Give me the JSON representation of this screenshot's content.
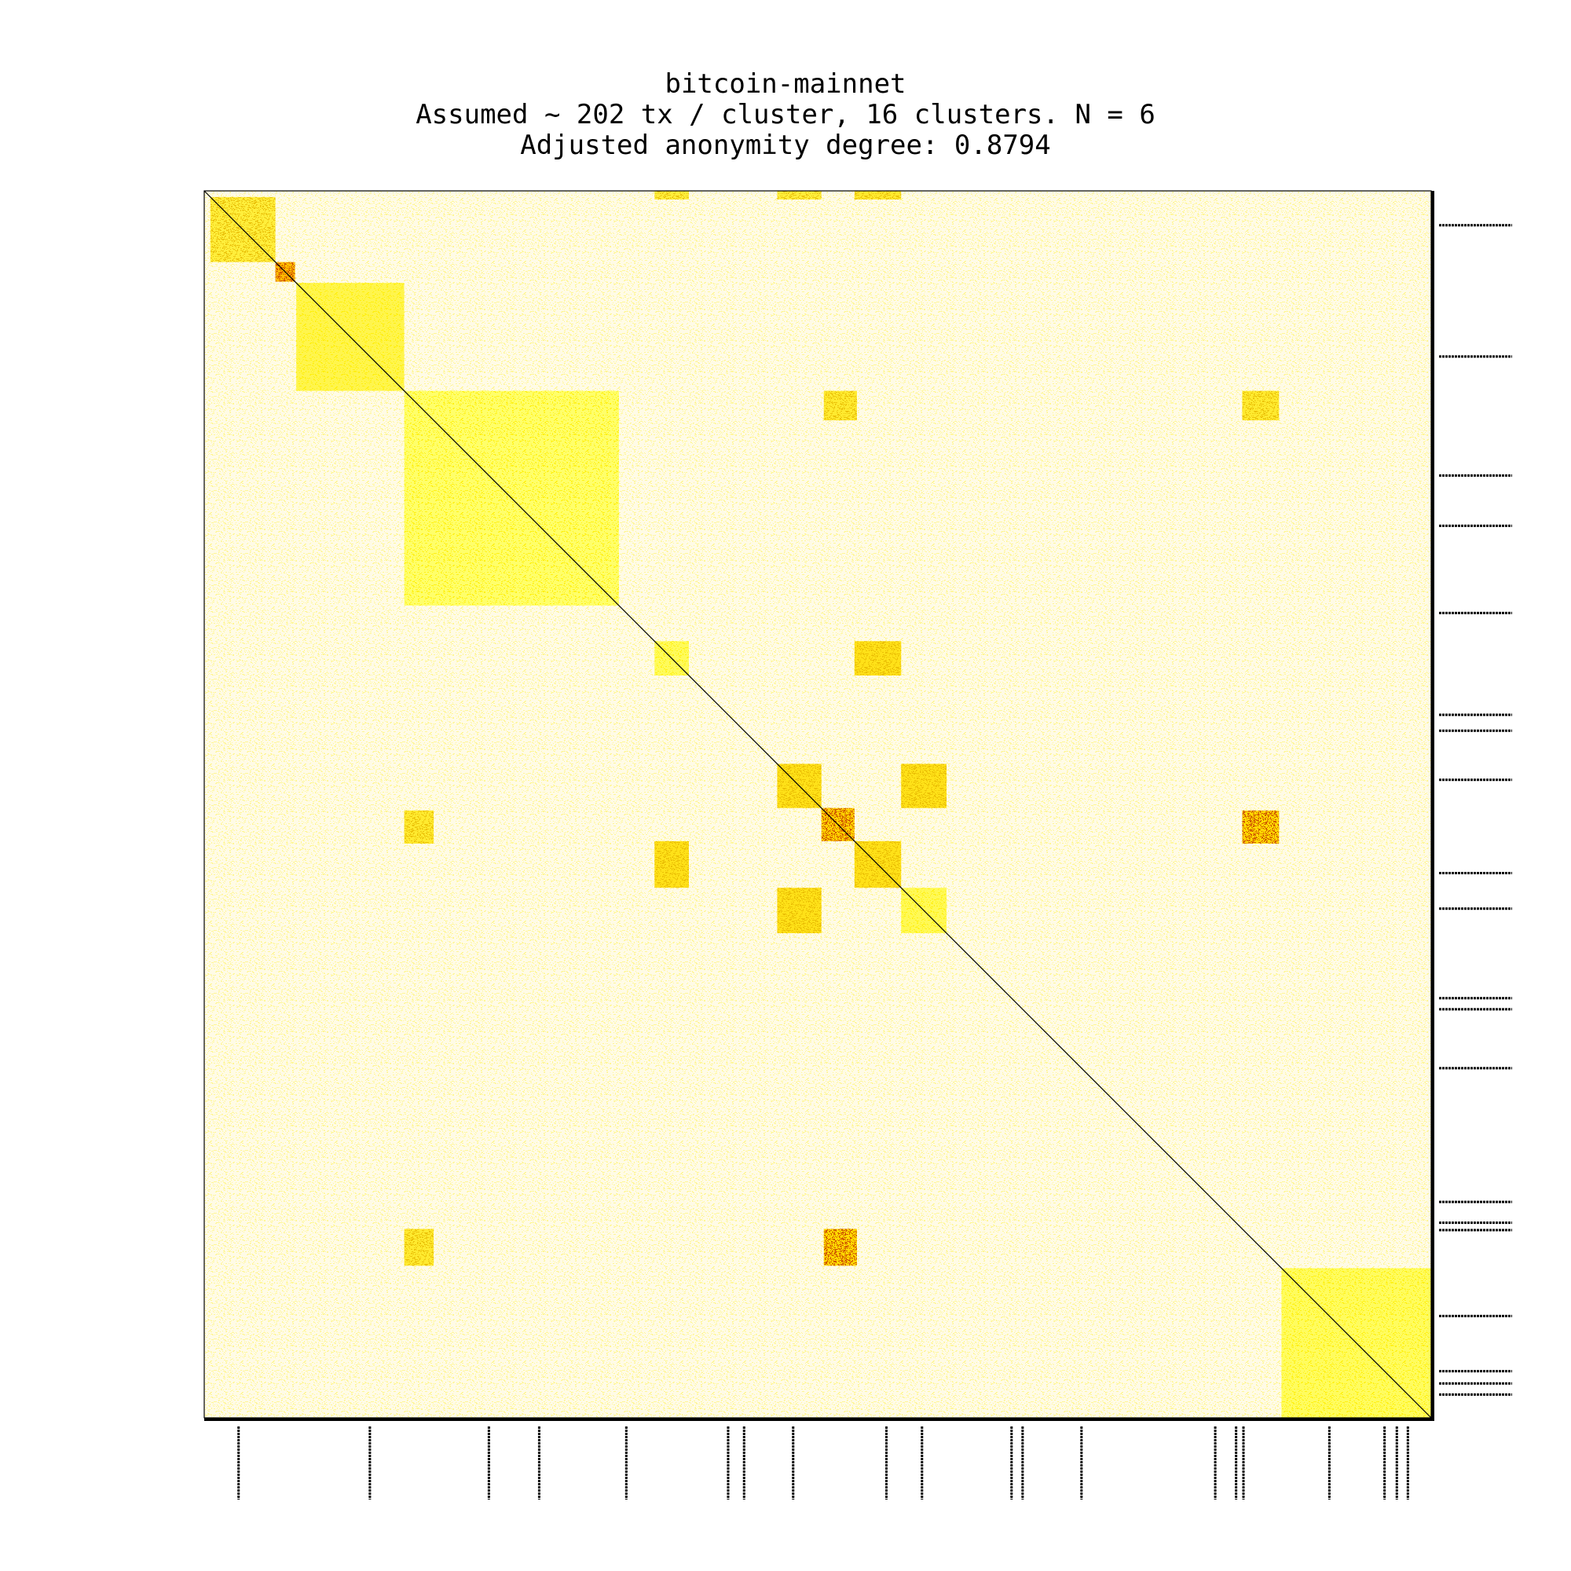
{
  "chart_data": {
    "type": "heatmap",
    "title_lines": [
      "bitcoin-mainnet",
      "Assumed ~ 202 tx / cluster, 16 clusters. N = 6",
      "Adjusted anonymity degree: 0.8794"
    ],
    "matrix_size": 1000,
    "colormap": [
      "#ffffff",
      "#ffff66",
      "#ffd700",
      "#ff9900",
      "#dd2200",
      "#000000"
    ],
    "diagonal_line": true,
    "dense_blocks": [
      {
        "start": 5,
        "end": 58,
        "intensity": 0.3
      },
      {
        "start": 58,
        "end": 74,
        "intensity": 0.75
      },
      {
        "start": 75,
        "end": 163,
        "intensity": 0.22
      },
      {
        "start": 163,
        "end": 338,
        "intensity": 0.1
      },
      {
        "start": 367,
        "end": 395,
        "intensity": 0.16
      },
      {
        "start": 467,
        "end": 503,
        "intensity": 0.45
      },
      {
        "start": 503,
        "end": 530,
        "intensity": 0.6
      },
      {
        "start": 530,
        "end": 568,
        "intensity": 0.45
      },
      {
        "start": 568,
        "end": 605,
        "intensity": 0.18
      },
      {
        "start": 878,
        "end": 1000,
        "intensity": 0.14
      }
    ],
    "offdiagonal_blocks": [
      {
        "rows": [
          163,
          187
        ],
        "cols": [
          505,
          532
        ],
        "intensity": 0.35
      },
      {
        "rows": [
          163,
          187
        ],
        "cols": [
          846,
          876
        ],
        "intensity": 0.35
      },
      {
        "rows": [
          505,
          532
        ],
        "cols": [
          163,
          187
        ],
        "intensity": 0.35
      },
      {
        "rows": [
          505,
          532
        ],
        "cols": [
          846,
          876
        ],
        "intensity": 0.55
      },
      {
        "rows": [
          846,
          876
        ],
        "cols": [
          163,
          187
        ],
        "intensity": 0.35
      },
      {
        "rows": [
          846,
          876
        ],
        "cols": [
          505,
          532
        ],
        "intensity": 0.55
      },
      {
        "rows": [
          367,
          395
        ],
        "cols": [
          530,
          568
        ],
        "intensity": 0.45
      },
      {
        "rows": [
          530,
          568
        ],
        "cols": [
          367,
          395
        ],
        "intensity": 0.45
      },
      {
        "rows": [
          467,
          503
        ],
        "cols": [
          568,
          605
        ],
        "intensity": 0.45
      },
      {
        "rows": [
          568,
          605
        ],
        "cols": [
          467,
          503
        ],
        "intensity": 0.45
      },
      {
        "rows": [
          0,
          7
        ],
        "cols": [
          367,
          395
        ],
        "intensity": 0.3
      },
      {
        "rows": [
          0,
          7
        ],
        "cols": [
          467,
          503
        ],
        "intensity": 0.3
      },
      {
        "rows": [
          0,
          7
        ],
        "cols": [
          530,
          568
        ],
        "intensity": 0.35
      }
    ],
    "cluster_boundaries": [
      28,
      135,
      232,
      273,
      344,
      427,
      440,
      480,
      556,
      585,
      658,
      667,
      715,
      824,
      841,
      847,
      917,
      962,
      972,
      981
    ]
  }
}
